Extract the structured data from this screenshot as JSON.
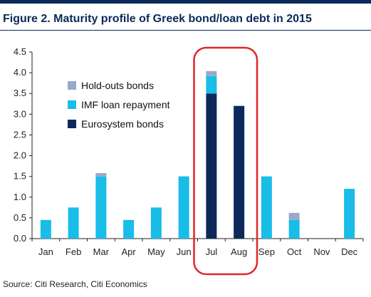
{
  "title": "Figure 2. Maturity profile of Greek bond/loan debt in 2015",
  "source": "Source: Citi Research, Citi Economics",
  "colors": {
    "holdouts": "#9aa9c8",
    "imf": "#19bde8",
    "eurosystem": "#0b2a5a",
    "highlight": "#e0262b",
    "brand": "#0b2a5a"
  },
  "chart_data": {
    "type": "bar",
    "stacked": true,
    "categories": [
      "Jan",
      "Feb",
      "Mar",
      "Apr",
      "May",
      "Jun",
      "Jul",
      "Aug",
      "Sep",
      "Oct",
      "Nov",
      "Dec"
    ],
    "series": [
      {
        "name": "Eurosystem bonds",
        "values": [
          0,
          0,
          0,
          0,
          0,
          0,
          3.5,
          3.2,
          0,
          0,
          0,
          0
        ]
      },
      {
        "name": "IMF loan repayment",
        "values": [
          0.45,
          0.75,
          1.5,
          0.45,
          0.75,
          1.5,
          0.42,
          0,
          1.5,
          0.45,
          0,
          1.2
        ]
      },
      {
        "name": "Hold-outs bonds",
        "values": [
          0,
          0,
          0.08,
          0,
          0,
          0,
          0.12,
          0,
          0,
          0.17,
          0,
          0
        ]
      }
    ],
    "yticks": [
      "0.0",
      "0.5",
      "1.0",
      "1.5",
      "2.0",
      "2.5",
      "3.0",
      "3.5",
      "4.0",
      "4.5"
    ],
    "ylim": [
      0,
      4.5
    ],
    "xlabel": "",
    "ylabel": "",
    "grid": false,
    "legend_position": "top-left",
    "highlight": [
      "Jul",
      "Aug"
    ]
  }
}
